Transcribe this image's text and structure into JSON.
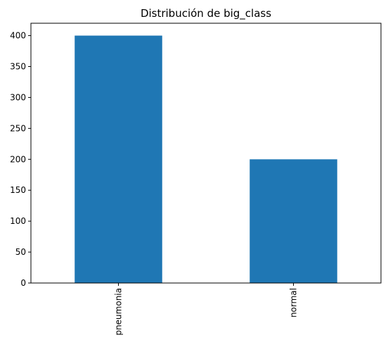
{
  "chart_data": {
    "type": "bar",
    "title": "Distribución de big_class",
    "categories": [
      "pneumonia",
      "normal"
    ],
    "values": [
      400,
      200
    ],
    "xlabel": "",
    "ylabel": "",
    "ylim": [
      0,
      420
    ],
    "yticks": [
      0,
      50,
      100,
      150,
      200,
      250,
      300,
      350,
      400
    ],
    "x_tick_rotation": 90,
    "grid": false,
    "legend": "none",
    "bar_color": "#1f77b4"
  }
}
